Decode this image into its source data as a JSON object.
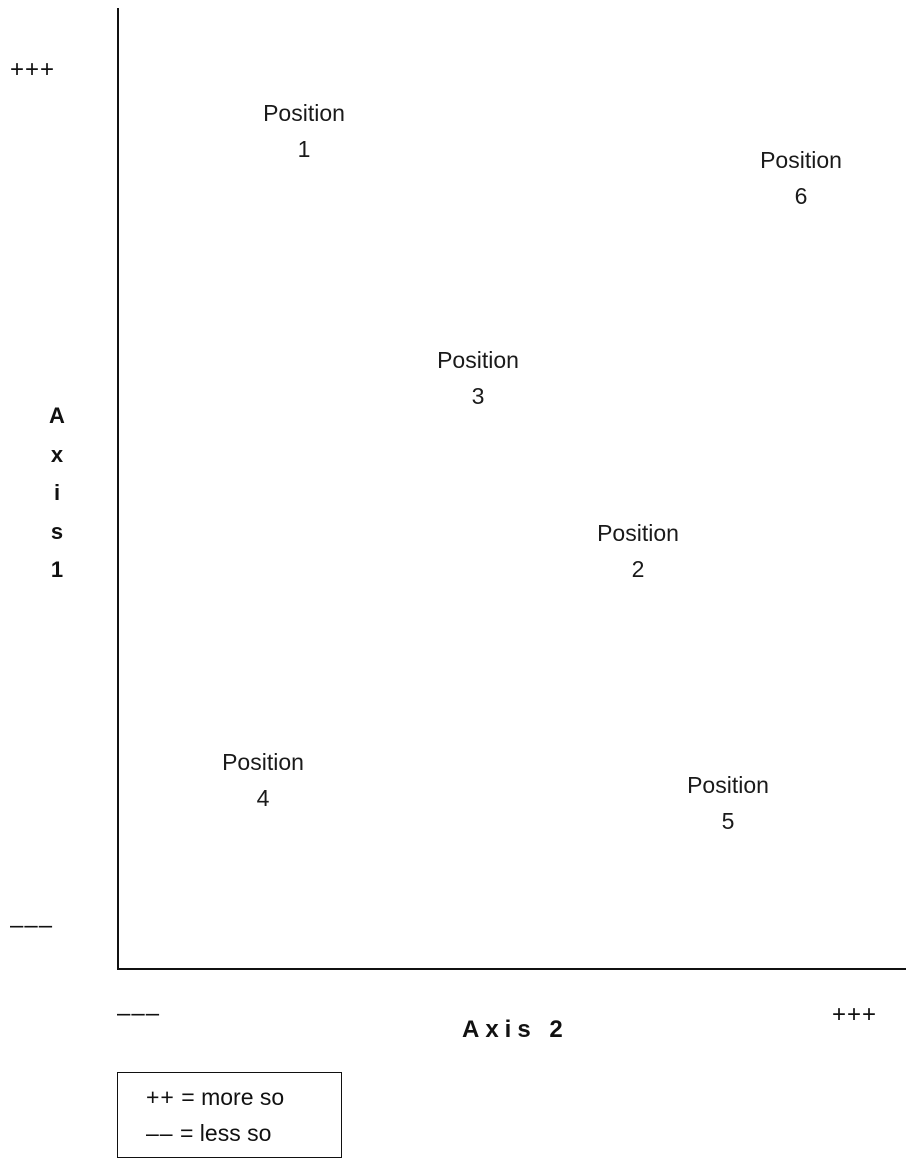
{
  "diagram": {
    "y_axis": {
      "title_letters": [
        "A",
        "x",
        "i",
        "s",
        "1"
      ],
      "top_label": "+++",
      "bottom_label": "–––"
    },
    "x_axis": {
      "title": "Axis 2",
      "left_label": "–––",
      "right_label": "+++"
    },
    "positions": [
      {
        "word": "Position",
        "number": "1"
      },
      {
        "word": "Position",
        "number": "2"
      },
      {
        "word": "Position",
        "number": "3"
      },
      {
        "word": "Position",
        "number": "4"
      },
      {
        "word": "Position",
        "number": "5"
      },
      {
        "word": "Position",
        "number": "6"
      }
    ],
    "legend": [
      {
        "symbol": "++",
        "text": " = more so"
      },
      {
        "symbol": "––",
        "text": " = less so"
      }
    ]
  }
}
